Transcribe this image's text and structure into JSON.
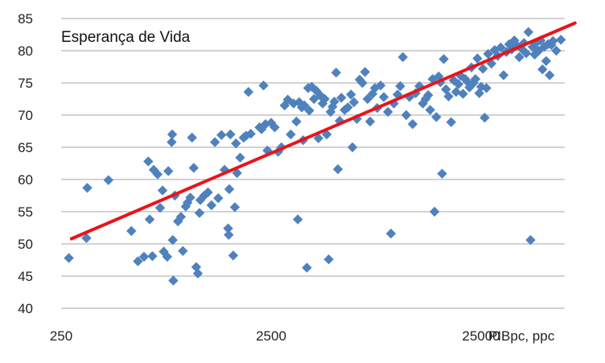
{
  "chart_data": {
    "type": "scatter",
    "title": "Esperança de Vida",
    "xlabel": "PIBpc, ppc",
    "ylabel": "",
    "x_scale": "log",
    "xlim": [
      250,
      70000
    ],
    "ylim": [
      40,
      85
    ],
    "x_ticks": [
      250,
      2500,
      25000
    ],
    "x_tick_labels": [
      "250",
      "2500",
      "25000"
    ],
    "y_ticks": [
      40,
      45,
      50,
      55,
      60,
      65,
      70,
      75,
      80,
      85
    ],
    "grid": "horizontal",
    "legend": "none",
    "colors": {
      "points": "#4F81BD",
      "trend": "#E8141C",
      "grid": "#A6A6A6"
    },
    "trendline": {
      "type": "logarithmic",
      "from": [
        280,
        50.8
      ],
      "to": [
        70000,
        84.3
      ]
    },
    "points": [
      [
        272,
        47.8
      ],
      [
        330,
        50.9
      ],
      [
        333,
        58.7
      ],
      [
        420,
        59.9
      ],
      [
        540,
        52.0
      ],
      [
        580,
        47.3
      ],
      [
        620,
        48.0
      ],
      [
        650,
        62.8
      ],
      [
        660,
        53.8
      ],
      [
        680,
        48.1
      ],
      [
        690,
        61.5
      ],
      [
        720,
        60.8
      ],
      [
        740,
        55.6
      ],
      [
        760,
        58.3
      ],
      [
        770,
        48.8
      ],
      [
        800,
        48.0
      ],
      [
        810,
        61.3
      ],
      [
        840,
        65.8
      ],
      [
        845,
        67.0
      ],
      [
        850,
        50.6
      ],
      [
        855,
        44.3
      ],
      [
        870,
        57.5
      ],
      [
        900,
        53.5
      ],
      [
        930,
        54.2
      ],
      [
        950,
        48.9
      ],
      [
        980,
        55.8
      ],
      [
        1000,
        56.4
      ],
      [
        1030,
        57.2
      ],
      [
        1050,
        66.5
      ],
      [
        1070,
        61.8
      ],
      [
        1100,
        46.4
      ],
      [
        1120,
        45.4
      ],
      [
        1140,
        54.8
      ],
      [
        1150,
        56.8
      ],
      [
        1200,
        57.5
      ],
      [
        1250,
        58.0
      ],
      [
        1300,
        56.0
      ],
      [
        1350,
        65.8
      ],
      [
        1400,
        57.1
      ],
      [
        1450,
        66.9
      ],
      [
        1500,
        61.5
      ],
      [
        1560,
        52.4
      ],
      [
        1570,
        51.4
      ],
      [
        1580,
        58.5
      ],
      [
        1600,
        67.0
      ],
      [
        1650,
        48.2
      ],
      [
        1680,
        55.7
      ],
      [
        1700,
        65.6
      ],
      [
        1720,
        61.0
      ],
      [
        1780,
        63.4
      ],
      [
        1850,
        66.5
      ],
      [
        1900,
        66.8
      ],
      [
        1950,
        73.6
      ],
      [
        2000,
        67.1
      ],
      [
        2200,
        68.1
      ],
      [
        2250,
        67.8
      ],
      [
        2300,
        74.6
      ],
      [
        2350,
        68.6
      ],
      [
        2400,
        64.5
      ],
      [
        2500,
        68.8
      ],
      [
        2600,
        68.1
      ],
      [
        2700,
        64.3
      ],
      [
        2800,
        65.0
      ],
      [
        2900,
        71.5
      ],
      [
        3000,
        72.4
      ],
      [
        3100,
        67.0
      ],
      [
        3200,
        71.8
      ],
      [
        3300,
        69.0
      ],
      [
        3350,
        53.8
      ],
      [
        3400,
        72.0
      ],
      [
        3500,
        71.2
      ],
      [
        3550,
        66.1
      ],
      [
        3600,
        71.5
      ],
      [
        3700,
        46.3
      ],
      [
        3750,
        74.2
      ],
      [
        3800,
        70.7
      ],
      [
        3900,
        74.4
      ],
      [
        4000,
        72.5
      ],
      [
        4100,
        73.8
      ],
      [
        4200,
        66.4
      ],
      [
        4300,
        73.0
      ],
      [
        4400,
        71.8
      ],
      [
        4500,
        72.5
      ],
      [
        4600,
        67.0
      ],
      [
        4700,
        47.6
      ],
      [
        4800,
        70.5
      ],
      [
        4900,
        71.3
      ],
      [
        5000,
        72.1
      ],
      [
        5100,
        76.6
      ],
      [
        5200,
        61.6
      ],
      [
        5300,
        69.1
      ],
      [
        5400,
        72.7
      ],
      [
        5600,
        70.8
      ],
      [
        5800,
        71.2
      ],
      [
        6000,
        73.2
      ],
      [
        6100,
        65.0
      ],
      [
        6200,
        72.0
      ],
      [
        6400,
        69.4
      ],
      [
        6600,
        75.5
      ],
      [
        6800,
        75.0
      ],
      [
        7000,
        76.7
      ],
      [
        7200,
        72.5
      ],
      [
        7400,
        69.0
      ],
      [
        7600,
        73.3
      ],
      [
        7800,
        74.2
      ],
      [
        8000,
        71.1
      ],
      [
        8300,
        74.6
      ],
      [
        8600,
        72.8
      ],
      [
        9000,
        70.5
      ],
      [
        9300,
        51.6
      ],
      [
        9600,
        71.8
      ],
      [
        10000,
        73.2
      ],
      [
        10300,
        74.5
      ],
      [
        10600,
        79.0
      ],
      [
        11000,
        70.0
      ],
      [
        11400,
        72.8
      ],
      [
        11800,
        68.6
      ],
      [
        12200,
        73.4
      ],
      [
        12700,
        74.5
      ],
      [
        13200,
        71.8
      ],
      [
        13600,
        72.5
      ],
      [
        14000,
        73.1
      ],
      [
        14300,
        70.8
      ],
      [
        14700,
        75.6
      ],
      [
        15000,
        55.0
      ],
      [
        15300,
        69.7
      ],
      [
        15700,
        76.0
      ],
      [
        16000,
        75.1
      ],
      [
        16300,
        60.9
      ],
      [
        16600,
        78.7
      ],
      [
        17000,
        74.0
      ],
      [
        17500,
        72.9
      ],
      [
        18000,
        68.9
      ],
      [
        18500,
        75.4
      ],
      [
        19000,
        73.6
      ],
      [
        19500,
        74.8
      ],
      [
        20000,
        76.1
      ],
      [
        20500,
        73.3
      ],
      [
        21000,
        75.6
      ],
      [
        21500,
        75.2
      ],
      [
        22000,
        74.3
      ],
      [
        22500,
        77.4
      ],
      [
        23000,
        75.0
      ],
      [
        23500,
        75.6
      ],
      [
        24000,
        78.8
      ],
      [
        24500,
        73.4
      ],
      [
        25000,
        74.4
      ],
      [
        25500,
        77.2
      ],
      [
        26000,
        69.6
      ],
      [
        26500,
        74.2
      ],
      [
        27000,
        79.5
      ],
      [
        28000,
        78.0
      ],
      [
        29000,
        80.1
      ],
      [
        30000,
        79.2
      ],
      [
        31000,
        80.5
      ],
      [
        32000,
        76.2
      ],
      [
        33000,
        79.8
      ],
      [
        34000,
        81.0
      ],
      [
        35000,
        80.2
      ],
      [
        36000,
        81.6
      ],
      [
        37000,
        80.8
      ],
      [
        38000,
        79.0
      ],
      [
        39000,
        80.3
      ],
      [
        40000,
        81.2
      ],
      [
        41000,
        79.6
      ],
      [
        42000,
        82.9
      ],
      [
        43000,
        50.6
      ],
      [
        44000,
        80.6
      ],
      [
        45000,
        79.4
      ],
      [
        46000,
        81.3
      ],
      [
        47000,
        80.0
      ],
      [
        48000,
        81.6
      ],
      [
        49000,
        77.1
      ],
      [
        50000,
        80.6
      ],
      [
        51000,
        78.4
      ],
      [
        52000,
        81.0
      ],
      [
        53000,
        76.2
      ],
      [
        54000,
        80.9
      ],
      [
        55000,
        81.5
      ],
      [
        57000,
        80.0
      ],
      [
        60000,
        81.7
      ],
      [
        64000,
        82.7
      ],
      [
        66000,
        79.0
      ],
      [
        67000,
        77.6
      ],
      [
        69000,
        81.0
      ],
      [
        71000,
        78.2
      ],
      [
        73000,
        81.1
      ],
      [
        76000,
        81.3
      ],
      [
        79000,
        78.1
      ],
      [
        84000,
        80.9
      ]
    ]
  }
}
